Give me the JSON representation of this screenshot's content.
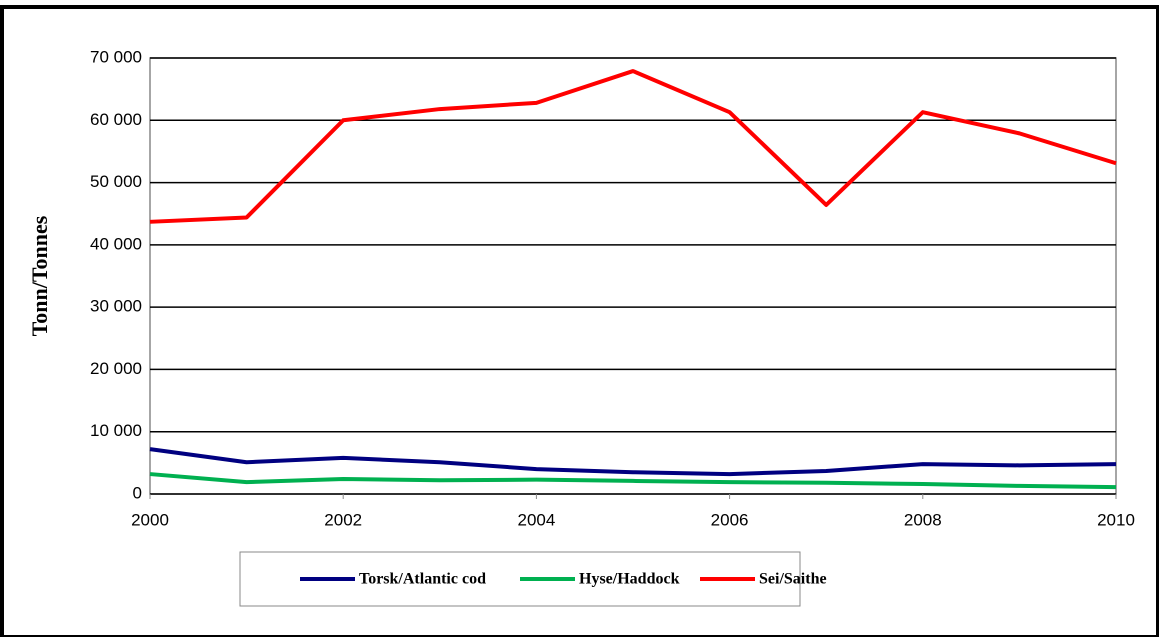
{
  "chart_data": {
    "type": "line",
    "y_label": "Tonn/Tonnes",
    "x": [
      2000,
      2001,
      2002,
      2003,
      2004,
      2005,
      2006,
      2007,
      2008,
      2009,
      2010
    ],
    "xlim": [
      2000,
      2010
    ],
    "xticks": [
      2000,
      2002,
      2004,
      2006,
      2008,
      2010
    ],
    "ylim": [
      0,
      70000
    ],
    "yticks": [
      0,
      {
        "value": 10000,
        "label": "10 000"
      },
      {
        "value": 20000,
        "label": "20 000"
      },
      {
        "value": 30000,
        "label": "30 000"
      },
      {
        "value": 40000,
        "label": "40 000"
      },
      {
        "value": 50000,
        "label": "50 000"
      },
      {
        "value": 60000,
        "label": "60 000"
      },
      {
        "value": 70000,
        "label": "70 000"
      }
    ],
    "grid": true,
    "legend": "bottom",
    "series": [
      {
        "name": "Torsk/Atlantic cod",
        "color": "#000080",
        "values": [
          7200,
          5100,
          5800,
          5100,
          4000,
          3500,
          3200,
          3700,
          4800,
          4600,
          4800
        ]
      },
      {
        "name": "Hyse/Haddock",
        "color": "#00b050",
        "values": [
          3200,
          1900,
          2400,
          2200,
          2300,
          2100,
          1900,
          1800,
          1600,
          1300,
          1100
        ]
      },
      {
        "name": "Sei/Saithe",
        "color": "#ff0000",
        "values": [
          43700,
          44400,
          60000,
          61800,
          62800,
          67900,
          61300,
          46400,
          61300,
          57900,
          53100
        ]
      }
    ]
  }
}
